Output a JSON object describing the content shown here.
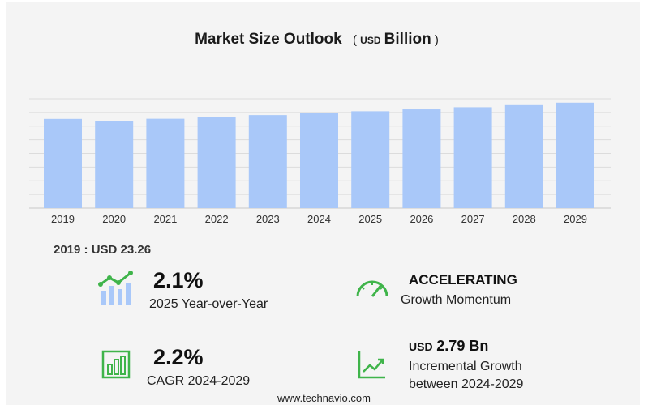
{
  "header": {
    "title": "Market Size Outlook",
    "unit_prefix": "USD",
    "unit": "Billion"
  },
  "chart_data": {
    "type": "bar",
    "categories": [
      "2019",
      "2020",
      "2021",
      "2022",
      "2023",
      "2024",
      "2025",
      "2026",
      "2027",
      "2028",
      "2029"
    ],
    "values": [
      23.26,
      22.8,
      23.3,
      23.75,
      24.25,
      24.7,
      25.25,
      25.75,
      26.3,
      26.85,
      27.49
    ],
    "ylim": [
      0,
      28.5
    ],
    "grid": true,
    "bar_color": "#a9c8f9"
  },
  "base_note": {
    "label": "2019 : USD  23.26"
  },
  "stats": {
    "yoy": {
      "value": "2.1%",
      "label": "2025 Year-over-Year",
      "icon": "growth-chart-icon"
    },
    "momentum": {
      "value": "ACCELERATING",
      "label": "Growth Momentum",
      "icon": "speedometer-icon"
    },
    "cagr": {
      "value": "2.2%",
      "label": "CAGR 2024-2029",
      "icon": "bar-chart-icon"
    },
    "incremental": {
      "prefix": "USD",
      "value": "2.79 Bn",
      "label1": "Incremental Growth",
      "label2": "between 2024-2029",
      "icon": "trend-line-icon"
    }
  },
  "footer": {
    "site": "www.technavio.com"
  },
  "colors": {
    "accent_green": "#3fb44a",
    "bar": "#a9c8f9"
  }
}
